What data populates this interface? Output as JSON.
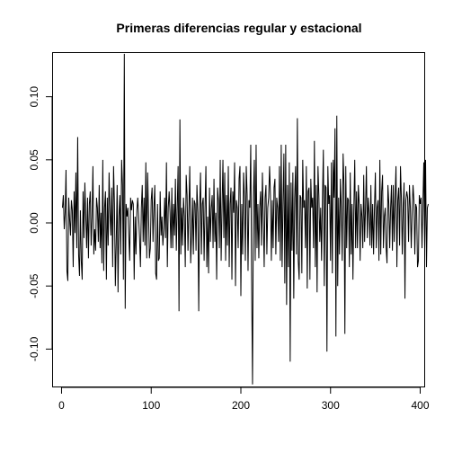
{
  "chart_data": {
    "type": "line",
    "title": "Primeras diferencias regular y estacional",
    "xlabel": "",
    "ylabel": "",
    "xlim": [
      -10,
      405
    ],
    "ylim": [
      -0.13,
      0.135
    ],
    "xticks": [
      0,
      100,
      200,
      300,
      400
    ],
    "xtick_labels": [
      "0",
      "100",
      "200",
      "300",
      "400"
    ],
    "yticks": [
      -0.1,
      -0.05,
      0.0,
      0.05,
      0.1
    ],
    "ytick_labels": [
      "-0.10",
      "-0.05",
      "0.00",
      "0.05",
      "0.10"
    ],
    "grid": false,
    "line_color": "#000000",
    "series": [
      {
        "x_start": 1,
        "x_step": 1,
        "values": [
          0.012,
          0.022,
          -0.005,
          0.008,
          0.042,
          -0.038,
          -0.046,
          0.02,
          0.003,
          -0.01,
          0.018,
          0.01,
          -0.035,
          0.025,
          -0.008,
          0.04,
          -0.02,
          0.068,
          -0.025,
          -0.042,
          0.01,
          -0.03,
          -0.045,
          0.025,
          -0.012,
          0.032,
          0.005,
          -0.02,
          0.02,
          -0.028,
          0.015,
          0.025,
          -0.018,
          0.005,
          0.045,
          -0.025,
          -0.005,
          -0.022,
          0.02,
          0.012,
          -0.015,
          0.03,
          -0.02,
          0.008,
          -0.032,
          0.05,
          -0.038,
          0.012,
          0.025,
          -0.045,
          0.02,
          -0.018,
          0.04,
          0.008,
          -0.01,
          0.028,
          -0.035,
          0.045,
          0.015,
          -0.05,
          -0.015,
          0.03,
          -0.055,
          0.005,
          0.022,
          -0.025,
          0.05,
          0.03,
          -0.045,
          0.134,
          -0.068,
          0.015,
          0.005,
          0.012,
          -0.01,
          -0.03,
          0.02,
          0.01,
          0.018,
          0.015,
          -0.045,
          0.005,
          -0.025,
          0.01,
          0.02,
          0.005,
          -0.012,
          -0.035,
          0.012,
          0.03,
          -0.015,
          0.02,
          -0.018,
          0.048,
          -0.028,
          0.04,
          0.008,
          -0.028,
          -0.02,
          0.018,
          0.028,
          -0.015,
          0.012,
          0.03,
          -0.04,
          -0.045,
          0.015,
          -0.03,
          -0.028,
          0.025,
          -0.01,
          0.005,
          -0.018,
          -0.005,
          0.02,
          -0.012,
          0.048,
          -0.035,
          0.012,
          0.025,
          0.008,
          -0.02,
          0.028,
          -0.02,
          0.015,
          -0.01,
          0.035,
          -0.022,
          0.012,
          0.045,
          -0.07,
          0.082,
          -0.025,
          0.012,
          -0.018,
          0.02,
          0.005,
          -0.035,
          0.038,
          0.022,
          -0.022,
          0.01,
          0.045,
          -0.032,
          -0.01,
          0.02,
          -0.025,
          0.018,
          0.015,
          -0.022,
          0.03,
          0.008,
          -0.07,
          0.012,
          0.04,
          -0.025,
          0.015,
          0.02,
          -0.03,
          0.012,
          0.045,
          -0.035,
          0.005,
          -0.04,
          0.028,
          -0.015,
          0.012,
          0.022,
          -0.02,
          0.035,
          -0.015,
          0.008,
          -0.045,
          0.028,
          0.018,
          -0.02,
          0.05,
          -0.03,
          0.012,
          0.05,
          -0.012,
          0.04,
          -0.03,
          0.022,
          -0.018,
          0.045,
          -0.035,
          0.015,
          0.028,
          -0.045,
          0.025,
          0.008,
          0.048,
          -0.05,
          0.018,
          0.012,
          -0.02,
          0.035,
          0.045,
          -0.058,
          0.015,
          -0.025,
          0.04,
          0.02,
          -0.03,
          0.045,
          0.022,
          -0.038,
          0.018,
          0.012,
          0.062,
          -0.048,
          -0.128,
          0.02,
          0.05,
          -0.03,
          0.062,
          -0.02,
          0.015,
          -0.028,
          0.012,
          0.025,
          -0.018,
          0.04,
          0.005,
          -0.035,
          0.02,
          0.03,
          -0.025,
          0.012,
          0.02,
          0.045,
          0.022,
          -0.03,
          0.018,
          -0.02,
          0.028,
          0.035,
          -0.025,
          0.02,
          0.012,
          -0.015,
          0.045,
          -0.03,
          0.062,
          -0.035,
          0.015,
          0.055,
          -0.048,
          0.062,
          -0.065,
          0.03,
          -0.035,
          0.048,
          -0.11,
          0.032,
          -0.022,
          0.04,
          -0.06,
          0.02,
          0.045,
          -0.025,
          0.083,
          -0.03,
          -0.045,
          0.022,
          0.02,
          -0.04,
          0.05,
          0.012,
          0.018,
          -0.02,
          0.045,
          -0.052,
          0.025,
          0.028,
          -0.045,
          0.035,
          0.012,
          0.02,
          -0.02,
          0.065,
          -0.035,
          0.03,
          -0.055,
          0.045,
          0.022,
          -0.015,
          0.012,
          -0.03,
          0.02,
          0.058,
          -0.05,
          0.03,
          0.028,
          -0.102,
          0.045,
          0.015,
          0.022,
          -0.03,
          0.048,
          -0.04,
          0.05,
          0.02,
          0.075,
          -0.09,
          0.085,
          -0.05,
          0.02,
          -0.025,
          0.035,
          0.012,
          -0.03,
          0.055,
          0.03,
          -0.088,
          0.045,
          -0.02,
          0.02,
          0.018,
          -0.035,
          0.04,
          -0.025,
          0.015,
          -0.045,
          0.012,
          0.05,
          -0.02,
          0.025,
          -0.02,
          0.03,
          0.015,
          -0.03,
          0.015,
          0.005,
          -0.02,
          0.038,
          -0.015,
          0.012,
          0.045,
          -0.012,
          0.02,
          0.008,
          -0.018,
          0.03,
          -0.02,
          0.015,
          -0.025,
          0.012,
          0.04,
          -0.02,
          0.012,
          0.018,
          -0.03,
          0.05,
          -0.025,
          0.025,
          0.038,
          -0.02,
          0.005,
          0.012,
          -0.02,
          -0.032,
          0.03,
          0.015,
          -0.02,
          0.012,
          0.03,
          -0.022,
          0.03,
          -0.015,
          0.02,
          0.045,
          -0.035,
          0.018,
          0.028,
          -0.018,
          0.045,
          0.02,
          -0.025,
          0.012,
          0.032,
          -0.06,
          0.018,
          0.025,
          0.02,
          -0.015,
          0.03,
          0.012,
          -0.02,
          0.008,
          0.03,
          0.018,
          -0.025,
          0.015,
          0.012,
          -0.035,
          -0.03,
          0.022,
          0.015,
          0.02,
          -0.02,
          0.015,
          0.048,
          -0.02,
          0.05,
          -0.035,
          0.012,
          0.015
        ]
      }
    ]
  }
}
